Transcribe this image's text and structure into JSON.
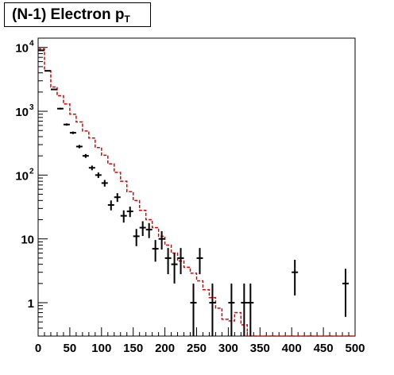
{
  "chart_data": {
    "type": "histogram",
    "title": {
      "main": "(N-1) Electron p",
      "subscript": "T"
    },
    "xlabel": "",
    "ylabel": "",
    "xlim": [
      0,
      500
    ],
    "ylim": [
      0.3,
      14000
    ],
    "yscale": "log",
    "grid": false,
    "bin_width": 10,
    "x_ticks": [
      0,
      50,
      100,
      150,
      200,
      250,
      300,
      350,
      400,
      450,
      500
    ],
    "x_tick_labels": [
      "0",
      "50",
      "100",
      "150",
      "200",
      "250",
      "300",
      "350",
      "400",
      "450",
      "500"
    ],
    "y_ticks": [
      {
        "value": 1,
        "label": "1",
        "sup": ""
      },
      {
        "value": 10,
        "label": "10",
        "sup": ""
      },
      {
        "value": 100,
        "label": "10",
        "sup": "2"
      },
      {
        "value": 1000,
        "label": "10",
        "sup": "3"
      },
      {
        "value": 10000,
        "label": "10",
        "sup": "4"
      }
    ],
    "series": [
      {
        "kind": "step",
        "color": "#dd0000",
        "style": "dashed",
        "bin_edges_start": 0,
        "values": [
          9500,
          4300,
          2400,
          1750,
          1300,
          900,
          680,
          490,
          380,
          270,
          205,
          150,
          110,
          80,
          55,
          40,
          28,
          20,
          15,
          11,
          8,
          6,
          4.5,
          3.6,
          2.9,
          2.2,
          1.6,
          1.2,
          0.82,
          0.55,
          0.52,
          0.7,
          0.45,
          0.3,
          0.3,
          0.3,
          0.3,
          0.3,
          0.3,
          0.3,
          0.3,
          0.3,
          0.3,
          0.3,
          0.3,
          0.3,
          0.3,
          0.3,
          0.3,
          0.3
        ]
      },
      {
        "kind": "errorbar",
        "color": "#000000",
        "x": [
          5,
          15,
          25,
          35,
          45,
          55,
          65,
          75,
          85,
          95,
          105,
          115,
          125,
          135,
          145,
          155,
          165,
          175,
          185,
          195,
          205,
          215,
          225,
          245,
          255,
          275,
          305,
          325,
          335,
          405,
          485
        ],
        "y": [
          9000,
          4300,
          2200,
          1100,
          620,
          460,
          280,
          200,
          130,
          100,
          75,
          34,
          45,
          23,
          27,
          11,
          15,
          14,
          7,
          10,
          5,
          4,
          5,
          1,
          5,
          1,
          1,
          1,
          1,
          3,
          2
        ],
        "yerr_low": [
          95,
          65,
          47,
          33,
          25,
          21,
          17,
          14,
          11,
          10,
          9,
          6,
          7,
          5,
          5,
          3.3,
          3.9,
          3.7,
          2.6,
          3.2,
          2.2,
          2,
          2.2,
          0.99,
          2.2,
          0.99,
          0.99,
          0.99,
          0.99,
          1.7,
          1.4
        ],
        "yerr_high": [
          95,
          65,
          47,
          33,
          25,
          21,
          17,
          14,
          11,
          10,
          9,
          6,
          7,
          5,
          5,
          3.3,
          3.9,
          3.7,
          2.6,
          3.2,
          2.2,
          2,
          2.2,
          1,
          2.2,
          1,
          1,
          1,
          1,
          1.7,
          1.4
        ]
      }
    ]
  }
}
